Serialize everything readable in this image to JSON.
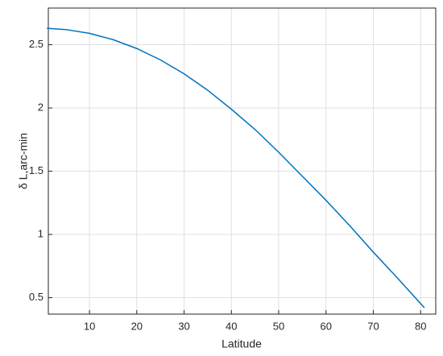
{
  "chart_data": {
    "type": "line",
    "xlabel": "Latitude",
    "ylabel": "δ L,arc-min",
    "x": [
      1,
      5,
      10,
      15,
      20,
      25,
      30,
      35,
      40,
      45,
      50,
      55,
      60,
      65,
      70,
      75,
      80.8
    ],
    "series": [
      {
        "color": "#0072bd",
        "values": [
          2.63,
          2.62,
          2.59,
          2.54,
          2.47,
          2.38,
          2.27,
          2.14,
          1.99,
          1.83,
          1.65,
          1.46,
          1.27,
          1.07,
          0.86,
          0.66,
          0.42
        ]
      }
    ],
    "xlim": [
      1.3,
      83.2
    ],
    "ylim": [
      0.37,
      2.79
    ],
    "xticks": [
      10,
      20,
      30,
      40,
      50,
      60,
      70,
      80
    ],
    "yticks": [
      0.5,
      1,
      1.5,
      2,
      2.5
    ],
    "grid": true
  }
}
